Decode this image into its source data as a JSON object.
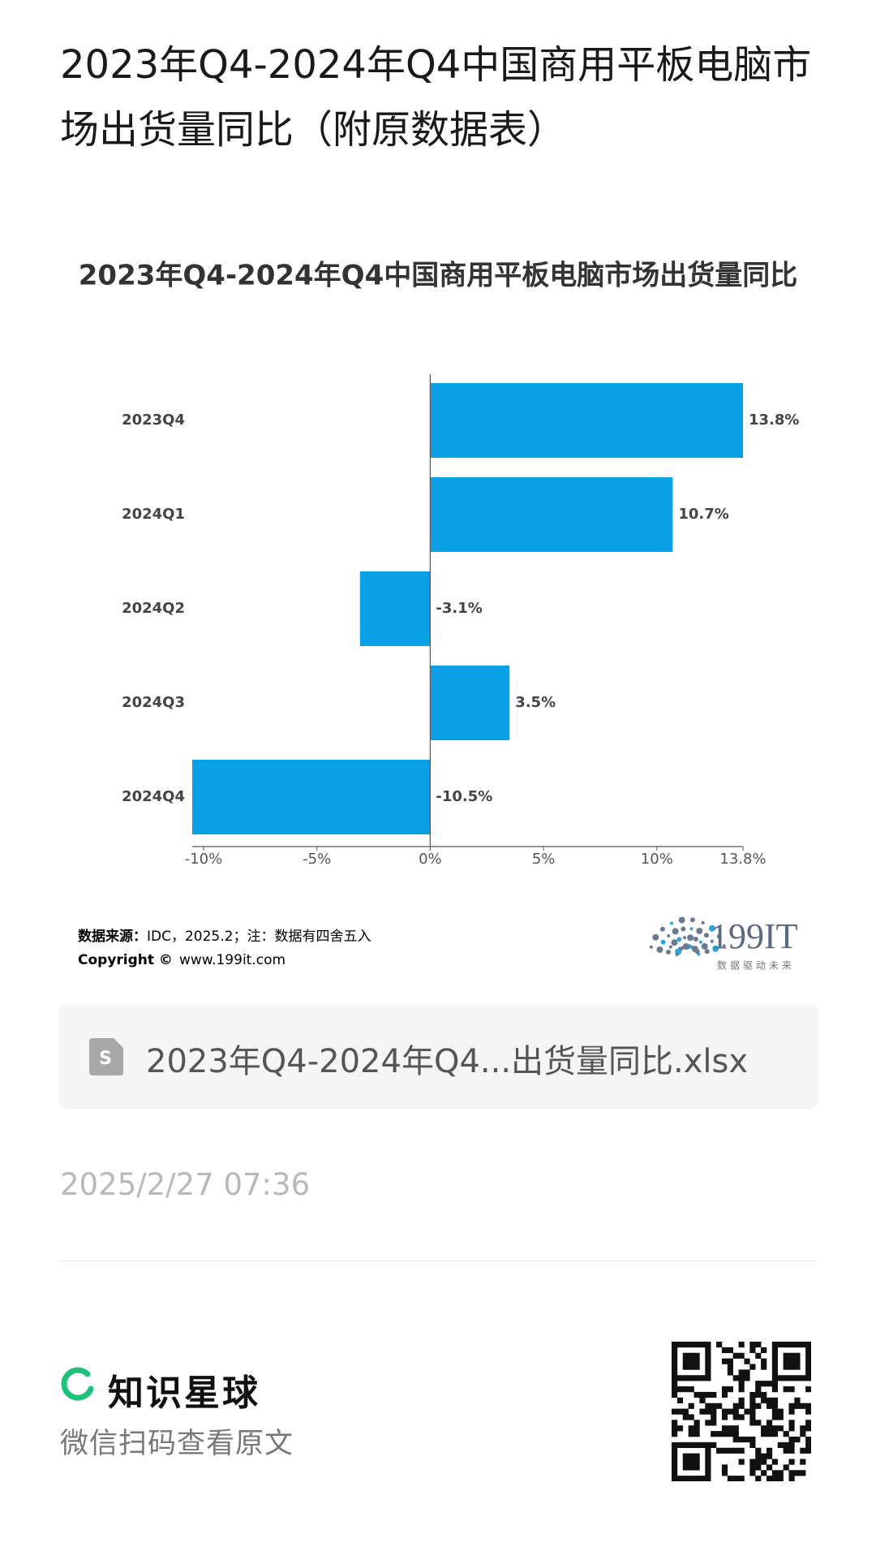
{
  "header": {
    "title": "2023年Q4-2024年Q4中国商用平板电脑市场出货量同比（附原数据表）"
  },
  "chart_data": {
    "type": "bar",
    "orientation": "horizontal",
    "title": "2023年Q4-2024年Q4中国商用平板电脑市场出货量同比",
    "categories": [
      "2023Q4",
      "2024Q1",
      "2024Q2",
      "2024Q3",
      "2024Q4"
    ],
    "values": [
      13.8,
      10.7,
      -3.1,
      3.5,
      -10.5
    ],
    "value_labels": [
      "13.8%",
      "10.7%",
      "-3.1%",
      "3.5%",
      "-10.5%"
    ],
    "color": "#0aa0e6",
    "xlim": [
      -10.5,
      13.8
    ],
    "xticks": [
      {
        "value": -10,
        "label": "-10%"
      },
      {
        "value": -5,
        "label": "-5%"
      },
      {
        "value": 0,
        "label": "0%"
      },
      {
        "value": 5,
        "label": "5%"
      },
      {
        "value": 10,
        "label": "10%"
      },
      {
        "value": 13.8,
        "label": "13.8%"
      }
    ]
  },
  "source": {
    "label": "数据来源：",
    "text": "IDC，2025.2；注：数据有四舍五入",
    "copyright_label": "Copyright ©",
    "copyright_text": "www.199it.com"
  },
  "logo": {
    "name": "199IT",
    "tagline": "数据驱动未来"
  },
  "attachment": {
    "filename": "2023年Q4-2024年Q4...出货量同比.xlsx"
  },
  "date": "2025/2/27 07:36",
  "footer": {
    "brand": "知识星球",
    "hint": "微信扫码查看原文"
  }
}
